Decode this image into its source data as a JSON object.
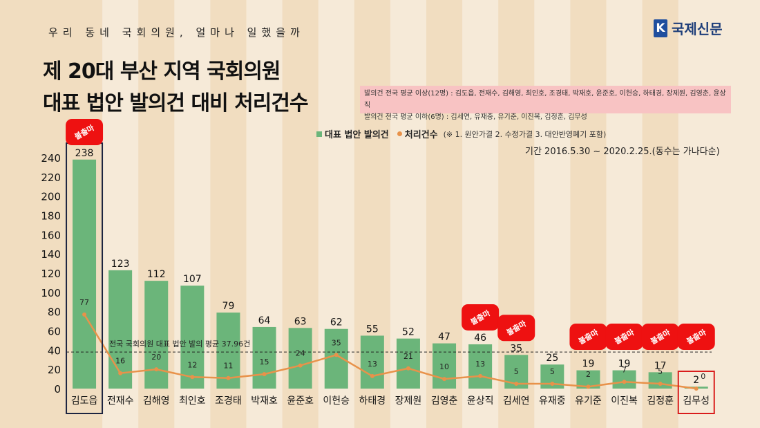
{
  "header": {
    "subtitle": "우리 동네 국회의원, 얼마나 일했을까",
    "title_line1": "제 20대 부산 지역 국회의원",
    "title_line2": "대표 법안 발의건 대비 처리건수",
    "logo_mark": "K",
    "logo_text": "국제신문"
  },
  "note": {
    "line1": "발의건 전국 평균 이상(12명) : 김도읍, 전재수, 김해영, 최인호, 조경태, 박재호, 윤준호, 이헌승, 하태경, 장제원, 김영춘, 윤상직",
    "line2": "발의건 전국 평균 이하(6명) : 김세연, 유재중, 유기준, 이진복, 김정훈, 김무성"
  },
  "legend": {
    "bar_label": "대표 법안 발의건",
    "line_label": "처리건수",
    "line_note": "(※ 1. 원안가결 2. 수정가결 3. 대안반영폐기 포함)"
  },
  "period": "기간 2016.5.30 ~ 2020.2.25.(동수는 가나다순)",
  "badge_text": "불출마",
  "colors": {
    "bar": "#6bb57a",
    "line": "#e8924a",
    "badge": "#ee1111",
    "stripe_light": "#f6ead8",
    "stripe_dark": "#f1ddc0"
  },
  "chart_data": {
    "type": "bar",
    "categories": [
      "김도읍",
      "전재수",
      "김해영",
      "최인호",
      "조경태",
      "박재호",
      "윤준호",
      "이헌승",
      "하태경",
      "장제원",
      "김영춘",
      "윤상직",
      "김세연",
      "유재중",
      "유기준",
      "이진복",
      "김정훈",
      "김무성"
    ],
    "series": [
      {
        "name": "대표 법안 발의건",
        "type": "bar",
        "values": [
          238,
          123,
          112,
          107,
          79,
          64,
          63,
          62,
          55,
          52,
          47,
          46,
          35,
          25,
          19,
          19,
          17,
          2
        ]
      },
      {
        "name": "처리건수",
        "type": "line",
        "values": [
          77,
          16,
          20,
          12,
          11,
          15,
          24,
          35,
          13,
          21,
          10,
          13,
          5,
          5,
          2,
          7,
          5,
          0
        ]
      }
    ],
    "ylim": [
      0,
      240
    ],
    "yticks": [
      0,
      20,
      40,
      60,
      80,
      100,
      120,
      140,
      160,
      180,
      200,
      220,
      240
    ],
    "reference_line": {
      "value": 37.96,
      "label": "전국 국회의원 대표 법안 발의 평균 37.96건"
    },
    "not_running": [
      "김도읍",
      "윤상직",
      "김세연",
      "유기준",
      "이진복",
      "김정훈",
      "김무성"
    ],
    "highlight_box": {
      "김도읍": "navy",
      "김무성": "red"
    },
    "grid": false
  }
}
